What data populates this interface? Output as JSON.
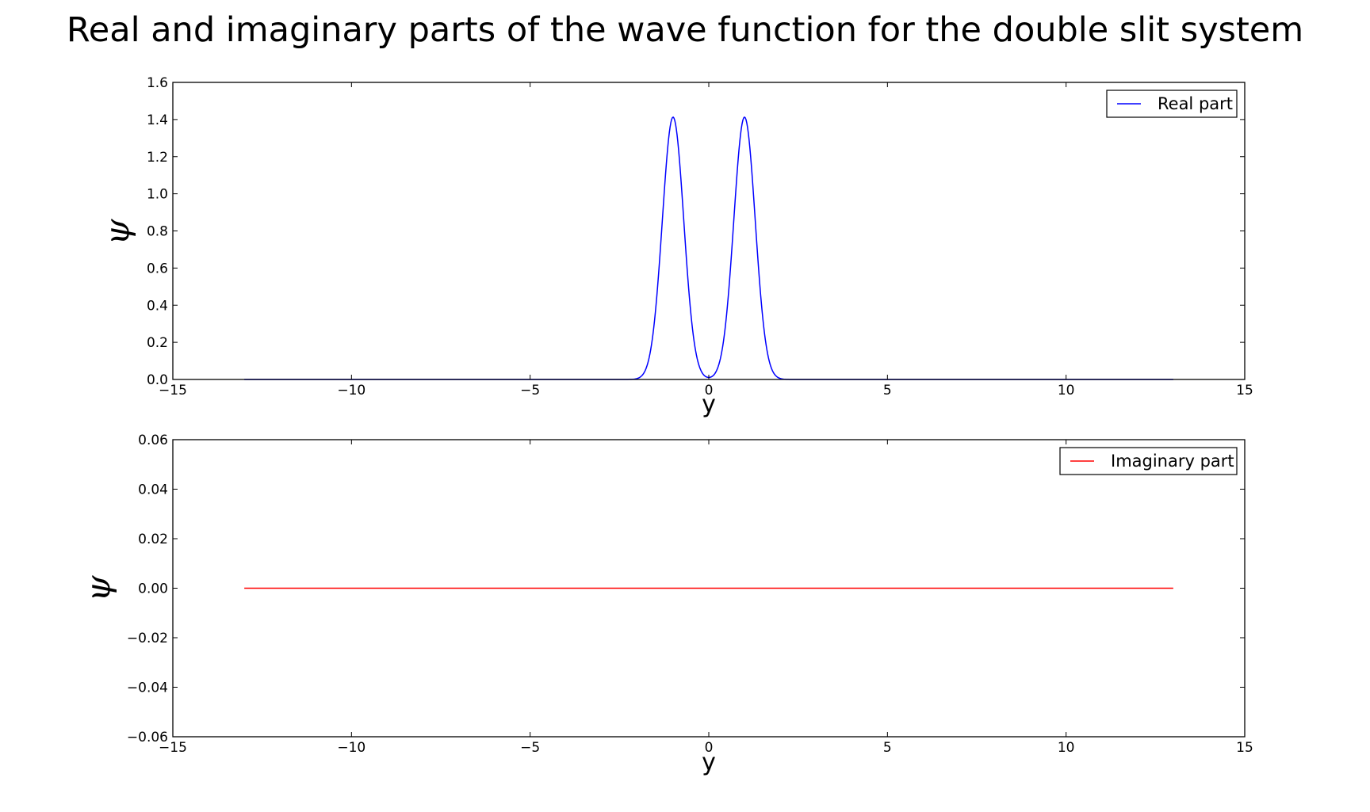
{
  "figure_title": "Real and imaginary parts of the wave function for the double slit system",
  "chart_data": [
    {
      "type": "line",
      "title": "",
      "xlabel": "y",
      "ylabel": "ψ",
      "xlim": [
        -15,
        15
      ],
      "ylim": [
        0,
        1.6
      ],
      "xticks": [
        -15,
        -10,
        -5,
        0,
        5,
        10,
        15
      ],
      "xtick_labels": [
        "−15",
        "−10",
        "−5",
        "0",
        "5",
        "10",
        "15"
      ],
      "yticks": [
        0,
        0.2,
        0.4,
        0.6,
        0.8,
        1.0,
        1.2,
        1.4,
        1.6
      ],
      "ytick_labels": [
        "0.0",
        "0.2",
        "0.4",
        "0.6",
        "0.8",
        "1.0",
        "1.2",
        "1.4",
        "1.6"
      ],
      "grid": false,
      "legend_position": "top-right",
      "series": [
        {
          "name": "Real part",
          "color": "#0000ff",
          "x_range": [
            -13,
            13
          ],
          "model": "double_gaussian",
          "centers": [
            -1.0,
            1.0
          ],
          "amplitude": 1.413,
          "sigma": 0.3
        }
      ]
    },
    {
      "type": "line",
      "title": "",
      "xlabel": "y",
      "ylabel": "ψ",
      "xlim": [
        -15,
        15
      ],
      "ylim": [
        -0.06,
        0.06
      ],
      "xticks": [
        -15,
        -10,
        -5,
        0,
        5,
        10,
        15
      ],
      "xtick_labels": [
        "−15",
        "−10",
        "−5",
        "0",
        "5",
        "10",
        "15"
      ],
      "yticks": [
        -0.06,
        -0.04,
        -0.02,
        0.0,
        0.02,
        0.04,
        0.06
      ],
      "ytick_labels": [
        "−0.06",
        "−0.04",
        "−0.02",
        "0.00",
        "0.02",
        "0.04",
        "0.06"
      ],
      "grid": false,
      "legend_position": "top-right",
      "series": [
        {
          "name": "Imaginary part",
          "color": "#ff0000",
          "x_range": [
            -13,
            13
          ],
          "model": "constant",
          "value": 0.0
        }
      ]
    }
  ]
}
